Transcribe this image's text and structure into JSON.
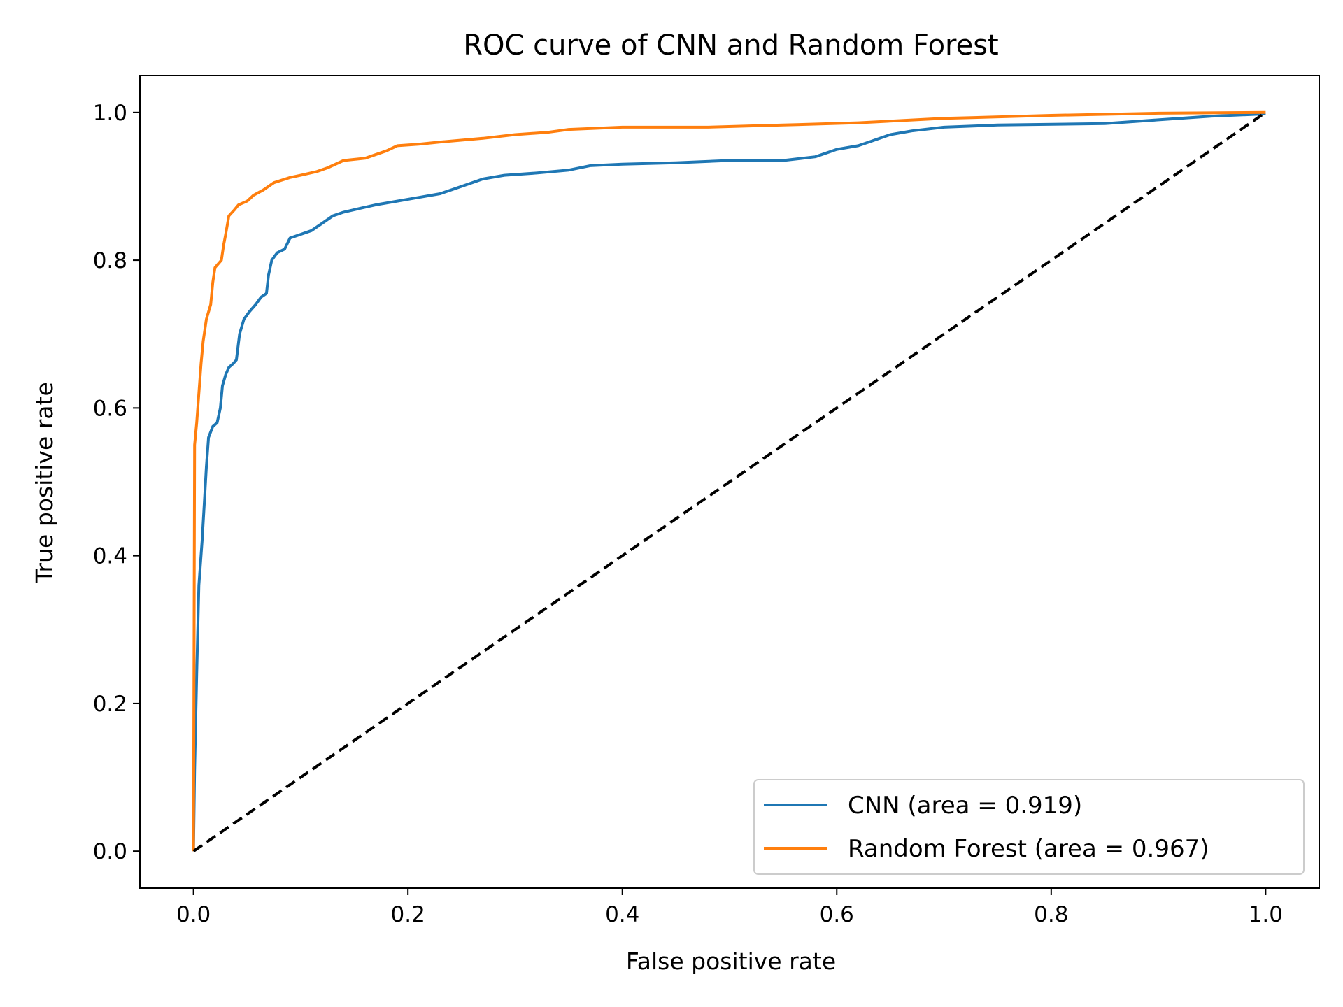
{
  "chart_data": {
    "type": "line",
    "title": "ROC curve of CNN and Random Forest",
    "xlabel": "False positive rate",
    "ylabel": "True positive rate",
    "xlim": [
      -0.05,
      1.05
    ],
    "ylim": [
      -0.05,
      1.05
    ],
    "xticks": [
      0.0,
      0.2,
      0.4,
      0.6,
      0.8,
      1.0
    ],
    "yticks": [
      0.0,
      0.2,
      0.4,
      0.6,
      0.8,
      1.0
    ],
    "xtick_labels": [
      "0.0",
      "0.2",
      "0.4",
      "0.6",
      "0.8",
      "1.0"
    ],
    "ytick_labels": [
      "0.0",
      "0.2",
      "0.4",
      "0.6",
      "0.8",
      "1.0"
    ],
    "grid": false,
    "legend_position": "lower-right",
    "series": [
      {
        "name": "CNN (area = 0.919)",
        "color": "#1f77b4",
        "style": "solid",
        "points": [
          [
            0,
            0
          ],
          [
            0.001,
            0.11
          ],
          [
            0.003,
            0.24
          ],
          [
            0.005,
            0.36
          ],
          [
            0.008,
            0.42
          ],
          [
            0.01,
            0.47
          ],
          [
            0.012,
            0.52
          ],
          [
            0.014,
            0.56
          ],
          [
            0.018,
            0.575
          ],
          [
            0.022,
            0.58
          ],
          [
            0.025,
            0.6
          ],
          [
            0.027,
            0.63
          ],
          [
            0.03,
            0.645
          ],
          [
            0.033,
            0.655
          ],
          [
            0.037,
            0.66
          ],
          [
            0.04,
            0.665
          ],
          [
            0.043,
            0.7
          ],
          [
            0.047,
            0.72
          ],
          [
            0.052,
            0.73
          ],
          [
            0.058,
            0.74
          ],
          [
            0.063,
            0.75
          ],
          [
            0.068,
            0.755
          ],
          [
            0.07,
            0.78
          ],
          [
            0.073,
            0.8
          ],
          [
            0.078,
            0.81
          ],
          [
            0.085,
            0.815
          ],
          [
            0.09,
            0.83
          ],
          [
            0.1,
            0.835
          ],
          [
            0.11,
            0.84
          ],
          [
            0.12,
            0.85
          ],
          [
            0.13,
            0.86
          ],
          [
            0.14,
            0.865
          ],
          [
            0.155,
            0.87
          ],
          [
            0.17,
            0.875
          ],
          [
            0.19,
            0.88
          ],
          [
            0.21,
            0.885
          ],
          [
            0.23,
            0.89
          ],
          [
            0.25,
            0.9
          ],
          [
            0.27,
            0.91
          ],
          [
            0.29,
            0.915
          ],
          [
            0.32,
            0.918
          ],
          [
            0.35,
            0.922
          ],
          [
            0.37,
            0.928
          ],
          [
            0.4,
            0.93
          ],
          [
            0.45,
            0.932
          ],
          [
            0.5,
            0.935
          ],
          [
            0.55,
            0.935
          ],
          [
            0.58,
            0.94
          ],
          [
            0.6,
            0.95
          ],
          [
            0.62,
            0.955
          ],
          [
            0.63,
            0.96
          ],
          [
            0.65,
            0.97
          ],
          [
            0.67,
            0.975
          ],
          [
            0.7,
            0.98
          ],
          [
            0.75,
            0.983
          ],
          [
            0.85,
            0.985
          ],
          [
            0.9,
            0.99
          ],
          [
            0.95,
            0.995
          ],
          [
            1.0,
            0.998
          ]
        ]
      },
      {
        "name": "Random Forest (area = 0.967)",
        "color": "#ff7f0e",
        "style": "solid",
        "points": [
          [
            0,
            0
          ],
          [
            0.001,
            0.55
          ],
          [
            0.003,
            0.58
          ],
          [
            0.005,
            0.62
          ],
          [
            0.007,
            0.66
          ],
          [
            0.009,
            0.69
          ],
          [
            0.012,
            0.72
          ],
          [
            0.016,
            0.74
          ],
          [
            0.018,
            0.77
          ],
          [
            0.02,
            0.79
          ],
          [
            0.026,
            0.8
          ],
          [
            0.028,
            0.82
          ],
          [
            0.03,
            0.835
          ],
          [
            0.033,
            0.86
          ],
          [
            0.038,
            0.868
          ],
          [
            0.042,
            0.875
          ],
          [
            0.05,
            0.88
          ],
          [
            0.056,
            0.888
          ],
          [
            0.065,
            0.895
          ],
          [
            0.075,
            0.905
          ],
          [
            0.09,
            0.912
          ],
          [
            0.1,
            0.915
          ],
          [
            0.115,
            0.92
          ],
          [
            0.125,
            0.925
          ],
          [
            0.14,
            0.935
          ],
          [
            0.16,
            0.938
          ],
          [
            0.18,
            0.948
          ],
          [
            0.19,
            0.955
          ],
          [
            0.21,
            0.957
          ],
          [
            0.23,
            0.96
          ],
          [
            0.27,
            0.965
          ],
          [
            0.3,
            0.97
          ],
          [
            0.33,
            0.973
          ],
          [
            0.35,
            0.977
          ],
          [
            0.4,
            0.98
          ],
          [
            0.48,
            0.98
          ],
          [
            0.55,
            0.983
          ],
          [
            0.62,
            0.986
          ],
          [
            0.7,
            0.992
          ],
          [
            0.8,
            0.996
          ],
          [
            0.9,
            0.999
          ],
          [
            1.0,
            1.0
          ]
        ]
      },
      {
        "name": "",
        "color": "#000000",
        "style": "dashed",
        "points": [
          [
            0,
            0
          ],
          [
            1,
            1
          ]
        ]
      }
    ]
  }
}
